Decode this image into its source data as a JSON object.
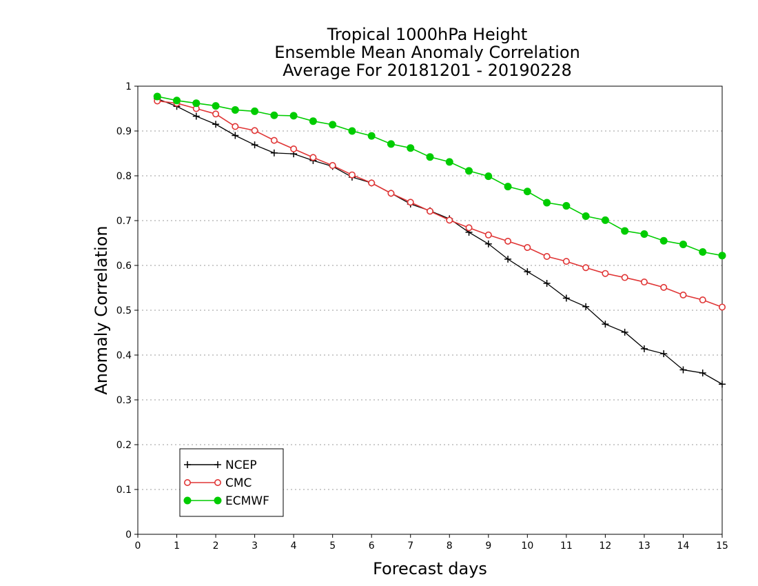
{
  "chart_data": {
    "type": "line",
    "title_lines": [
      "Tropical 1000hPa Height",
      "Ensemble Mean Anomaly Correlation",
      "Average For 20181201 - 20190228"
    ],
    "xlabel": "Forecast days",
    "ylabel": "Anomaly Correlation",
    "xlim": [
      0,
      15
    ],
    "ylim": [
      0,
      1
    ],
    "xticks": [
      "0",
      "1",
      "2",
      "3",
      "4",
      "5",
      "6",
      "7",
      "8",
      "9",
      "10",
      "11",
      "12",
      "13",
      "14",
      "15"
    ],
    "yticks": [
      "0",
      "0.1",
      "0.2",
      "0.3",
      "0.4",
      "0.5",
      "0.6",
      "0.7",
      "0.8",
      "0.9",
      "1"
    ],
    "grid": "horizontal dotted",
    "legend_position": "bottom-left",
    "x": [
      0.5,
      1,
      1.5,
      2,
      2.5,
      3,
      3.5,
      4,
      4.5,
      5,
      5.5,
      6,
      6.5,
      7,
      7.5,
      8,
      8.5,
      9,
      9.5,
      10,
      10.5,
      11,
      11.5,
      12,
      12.5,
      13,
      13.5,
      14,
      14.5,
      15
    ],
    "series": [
      {
        "name": "NCEP",
        "color": "#000000",
        "marker": "plus",
        "values": [
          0.972,
          0.955,
          0.933,
          0.915,
          0.89,
          0.869,
          0.851,
          0.849,
          0.834,
          0.821,
          0.797,
          0.784,
          0.761,
          0.737,
          0.722,
          0.704,
          0.674,
          0.648,
          0.614,
          0.586,
          0.56,
          0.527,
          0.508,
          0.469,
          0.451,
          0.414,
          0.403,
          0.367,
          0.36,
          0.335
        ]
      },
      {
        "name": "CMC",
        "color": "#e03535",
        "marker": "open-circle",
        "values": [
          0.967,
          0.962,
          0.95,
          0.938,
          0.91,
          0.901,
          0.879,
          0.86,
          0.841,
          0.823,
          0.802,
          0.784,
          0.761,
          0.741,
          0.721,
          0.701,
          0.684,
          0.668,
          0.654,
          0.64,
          0.62,
          0.609,
          0.595,
          0.582,
          0.573,
          0.563,
          0.551,
          0.534,
          0.523,
          0.507
        ]
      },
      {
        "name": "ECMWF",
        "color": "#00cc00",
        "marker": "filled-circle",
        "values": [
          0.977,
          0.968,
          0.962,
          0.956,
          0.947,
          0.944,
          0.935,
          0.934,
          0.922,
          0.914,
          0.9,
          0.889,
          0.871,
          0.862,
          0.842,
          0.831,
          0.811,
          0.799,
          0.776,
          0.765,
          0.74,
          0.733,
          0.71,
          0.701,
          0.677,
          0.67,
          0.655,
          0.647,
          0.63,
          0.622
        ]
      }
    ]
  }
}
